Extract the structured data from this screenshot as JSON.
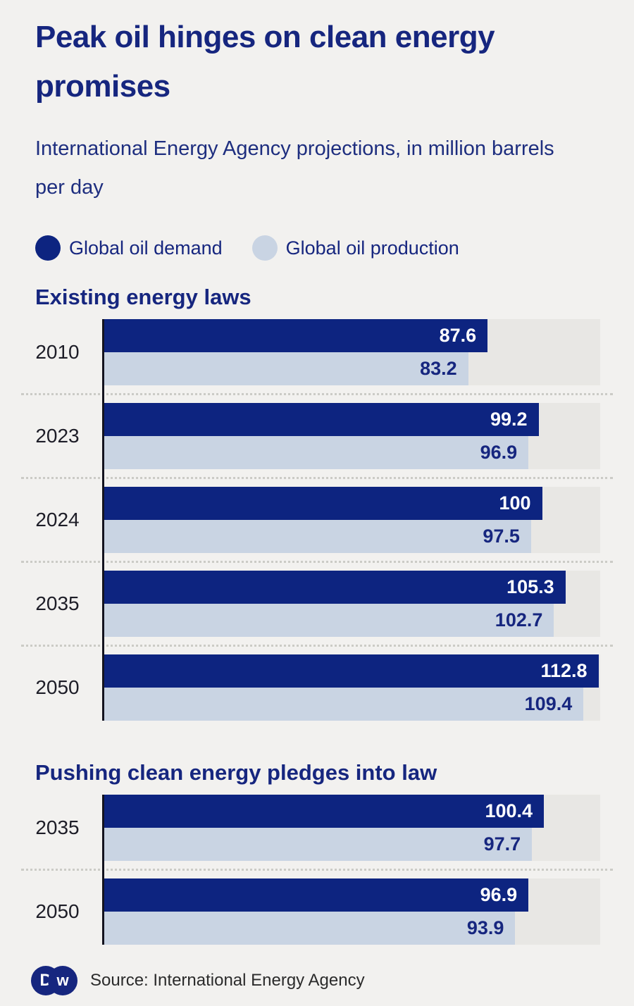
{
  "colors": {
    "background": "#F2F1EF",
    "navy": "#16267F",
    "bar_demand": "#0D2480",
    "bar_production": "#C9D4E3",
    "track": "#E8E7E4",
    "year_text": "#1D1D27",
    "value_on_demand": "#FFFFFF",
    "value_on_production": "#16267F"
  },
  "header": {
    "title": "Peak oil hinges on clean energy promises",
    "subtitle": "International Energy Agency projections, in million barrels per day"
  },
  "legend": [
    {
      "label": "Global oil demand",
      "color": "#0D2480"
    },
    {
      "label": "Global oil production",
      "color": "#C9D4E3"
    }
  ],
  "chart_data": [
    {
      "type": "bar",
      "orientation": "horizontal",
      "title": "Existing energy laws",
      "categories": [
        "2010",
        "2023",
        "2024",
        "2035",
        "2050"
      ],
      "series": [
        {
          "name": "Global oil demand",
          "color": "#0D2480",
          "values": [
            87.6,
            99.2,
            100,
            105.3,
            112.8
          ]
        },
        {
          "name": "Global oil production",
          "color": "#C9D4E3",
          "values": [
            83.2,
            96.9,
            97.5,
            102.7,
            109.4
          ]
        }
      ],
      "xlim": [
        0,
        113.2
      ],
      "value_labels": "inside-end",
      "grid": "off",
      "unit": "million barrels per day"
    },
    {
      "type": "bar",
      "orientation": "horizontal",
      "title": "Pushing clean energy pledges into law",
      "categories": [
        "2035",
        "2050"
      ],
      "series": [
        {
          "name": "Global oil demand",
          "color": "#0D2480",
          "values": [
            100.4,
            96.9
          ]
        },
        {
          "name": "Global oil production",
          "color": "#C9D4E3",
          "values": [
            97.7,
            93.9
          ]
        }
      ],
      "xlim": [
        0,
        113.2
      ],
      "value_labels": "inside-end",
      "grid": "off",
      "unit": "million barrels per day"
    }
  ],
  "footer": {
    "logo_name": "dw-logo",
    "logo_letter_d": "D",
    "logo_letter_w": "w",
    "source": "Source: International Energy Agency"
  }
}
